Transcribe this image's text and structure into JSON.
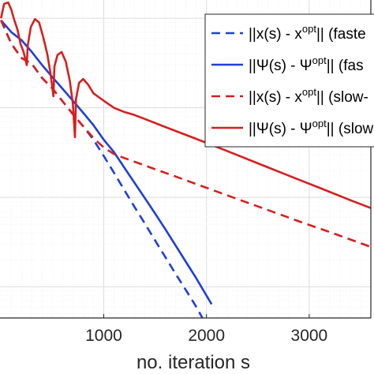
{
  "chart_data": {
    "type": "line",
    "xlabel": "no. iteration s",
    "ylabel": "",
    "title": "",
    "xlim": [
      -10,
      3600
    ],
    "y_scale": "log",
    "x_ticks": [
      1000,
      2000,
      3000
    ],
    "x_tick_labels": [
      "1000",
      "2000",
      "3000"
    ],
    "grid": true,
    "legend_position": "top-right",
    "legend": [
      {
        "text": "||x(s) - x",
        "sup": "opt",
        "tail": "|| (faste",
        "color": "#1f3fd6",
        "dash": true
      },
      {
        "text": "||Ψ(s) - Ψ",
        "sup": "opt",
        "tail": "|| (fas",
        "color": "#1f3fd6",
        "dash": false
      },
      {
        "text": "||x(s) - x",
        "sup": "opt",
        "tail": "|| (slow-",
        "color": "#d61f1f",
        "dash": true
      },
      {
        "text": "||Ψ(s) - Ψ",
        "sup": "opt",
        "tail": "|| (slow",
        "color": "#d61f1f",
        "dash": false
      }
    ],
    "series": [
      {
        "color": "#1f3fd6",
        "dash": true,
        "x": [
          0,
          100,
          200,
          300,
          400,
          500,
          600,
          700,
          800,
          900,
          1000,
          1100,
          1200,
          1300,
          1400,
          1500,
          1600,
          1700,
          1800,
          1900,
          1960
        ],
        "y": [
          0.95,
          0.52,
          0.36,
          0.31,
          0.215,
          0.165,
          0.118,
          0.085,
          0.062,
          0.044,
          0.029,
          0.0188,
          0.0121,
          0.0078,
          0.0051,
          0.0033,
          0.00215,
          0.0014,
          0.00092,
          0.0006,
          0.00045
        ]
      },
      {
        "color": "#1f3fd6",
        "dash": false,
        "x": [
          0,
          100,
          200,
          300,
          400,
          500,
          600,
          700,
          800,
          900,
          1000,
          1100,
          1200,
          1300,
          1400,
          1500,
          1600,
          1700,
          1800,
          1900,
          2000,
          2050
        ],
        "y": [
          0.95,
          0.7,
          0.57,
          0.42,
          0.3,
          0.22,
          0.163,
          0.12,
          0.088,
          0.064,
          0.044,
          0.032,
          0.0215,
          0.0145,
          0.0098,
          0.0066,
          0.0044,
          0.0029,
          0.0019,
          0.00125,
          0.0008,
          0.00064
        ]
      },
      {
        "color": "#d61f1f",
        "dash": true,
        "x": [
          0,
          100,
          200,
          300,
          400,
          500,
          600,
          700,
          800,
          900,
          1000,
          1100,
          1200,
          1300,
          1400,
          1500,
          1700,
          2000,
          2300,
          2600,
          2900,
          3200,
          3600
        ],
        "y": [
          0.95,
          0.52,
          0.36,
          0.31,
          0.215,
          0.165,
          0.118,
          0.085,
          0.062,
          0.046,
          0.036,
          0.0305,
          0.0275,
          0.025,
          0.0227,
          0.0206,
          0.0171,
          0.0128,
          0.0096,
          0.0072,
          0.0054,
          0.0041,
          0.0028
        ]
      },
      {
        "color": "#d61f1f",
        "dash": false,
        "x": [
          0,
          30,
          70,
          100,
          130,
          160,
          190,
          220,
          250,
          260,
          290,
          330,
          370,
          410,
          450,
          480,
          510,
          520,
          550,
          590,
          630,
          670,
          700,
          720,
          730,
          760,
          800,
          850,
          900,
          1000,
          1100,
          1200,
          1300,
          1400,
          1600,
          1900,
          2200,
          2500,
          2800,
          3100,
          3400,
          3600
        ],
        "y": [
          1.0,
          1.45,
          1.5,
          1.25,
          0.95,
          0.75,
          0.52,
          0.42,
          0.3,
          0.5,
          0.8,
          0.98,
          0.9,
          0.62,
          0.4,
          0.25,
          0.135,
          0.29,
          0.39,
          0.42,
          0.33,
          0.2,
          0.11,
          0.047,
          0.125,
          0.19,
          0.21,
          0.18,
          0.145,
          0.12,
          0.1,
          0.09,
          0.083,
          0.075,
          0.061,
          0.045,
          0.033,
          0.024,
          0.0175,
          0.0128,
          0.0093,
          0.0076
        ]
      }
    ]
  }
}
